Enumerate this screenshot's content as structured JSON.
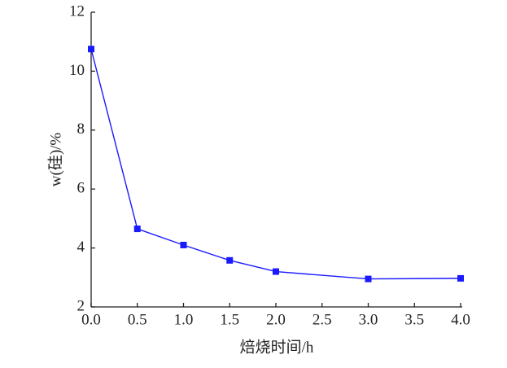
{
  "chart_data": {
    "type": "line",
    "x_label": "焙烧时间/h",
    "y_label": "w(硅)/%",
    "series": [
      {
        "color": "#1a1aff",
        "x": [
          0,
          0.5,
          1,
          1.5,
          2,
          3,
          4
        ],
        "values": [
          10.75,
          4.65,
          4.1,
          3.58,
          3.2,
          2.95,
          2.97
        ]
      }
    ],
    "xlim": [
      0,
      4
    ],
    "ylim": [
      2,
      12
    ],
    "xticks": [
      {
        "value": 0,
        "label": "0.0"
      },
      {
        "value": 0.5,
        "label": "0.5"
      },
      {
        "value": 1,
        "label": "1.0"
      },
      {
        "value": 1.5,
        "label": "1.5"
      },
      {
        "value": 2,
        "label": "2.0"
      },
      {
        "value": 2.5,
        "label": "2.5"
      },
      {
        "value": 3,
        "label": "3.0"
      },
      {
        "value": 3.5,
        "label": "3.5"
      },
      {
        "value": 4,
        "label": "4.0"
      }
    ],
    "yticks": [
      2,
      4,
      6,
      8,
      10,
      12
    ]
  }
}
